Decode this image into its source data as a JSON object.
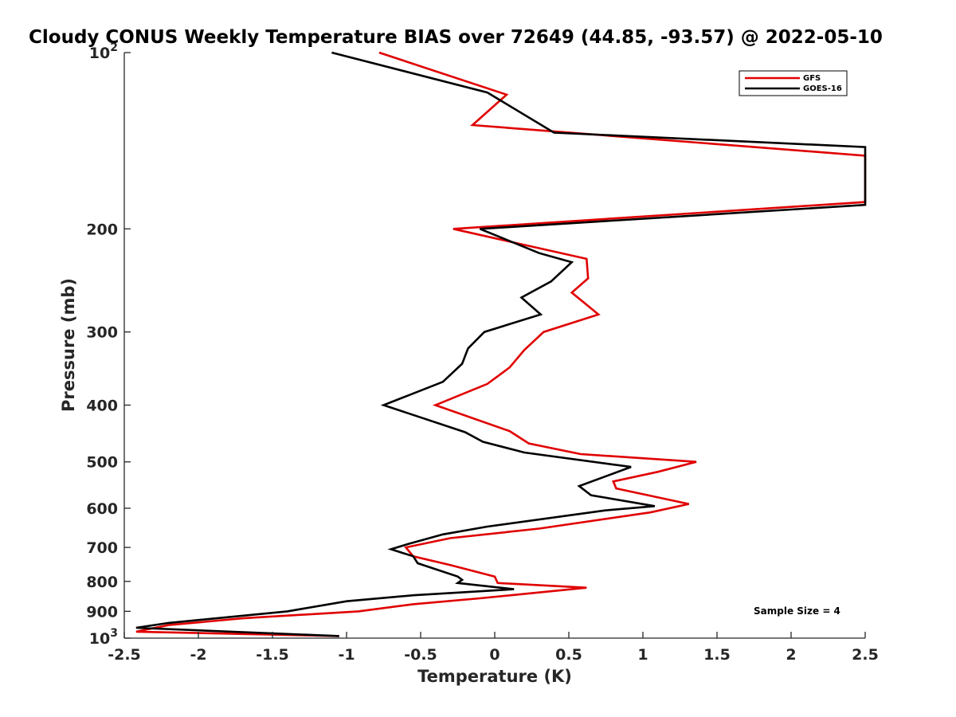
{
  "chart_data": {
    "type": "line",
    "title": "Cloudy CONUS Weekly Temperature BIAS over 72649 (44.85, -93.57) @ 2022-05-10",
    "xlabel": "Temperature (K)",
    "ylabel": "Pressure (mb)",
    "xlim": [
      -2.5,
      2.5
    ],
    "ylim": [
      100,
      1000
    ],
    "y_scale": "log",
    "y_reversed": true,
    "grid": false,
    "legend_position": "top-right",
    "x_ticks": [
      -2.5,
      -2,
      -1.5,
      -1,
      -0.5,
      0,
      0.5,
      1,
      1.5,
      2,
      2.5
    ],
    "x_tick_labels": [
      "-2.5",
      "-2",
      "-1.5",
      "-1",
      "-0.5",
      "0",
      "0.5",
      "1",
      "1.5",
      "2",
      "2.5"
    ],
    "y_ticks": [
      100,
      200,
      300,
      400,
      500,
      600,
      700,
      800,
      900,
      1000
    ],
    "y_tick_labels": [
      {
        "base": "10",
        "exp": "2"
      },
      {
        "base": "200",
        "exp": ""
      },
      {
        "base": "300",
        "exp": ""
      },
      {
        "base": "400",
        "exp": ""
      },
      {
        "base": "500",
        "exp": ""
      },
      {
        "base": "600",
        "exp": ""
      },
      {
        "base": "700",
        "exp": ""
      },
      {
        "base": "800",
        "exp": ""
      },
      {
        "base": "900",
        "exp": ""
      },
      {
        "base": "10",
        "exp": "3"
      }
    ],
    "annotation": "Sample Size = 4",
    "series": [
      {
        "name": "GFS",
        "color": "#e00000",
        "points": [
          [
            -0.78,
            100
          ],
          [
            0.08,
            118
          ],
          [
            -0.15,
            133
          ],
          [
            2.5,
            150
          ],
          [
            2.5,
            180
          ],
          [
            -0.28,
            200
          ],
          [
            0.62,
            225
          ],
          [
            0.63,
            243
          ],
          [
            0.52,
            257
          ],
          [
            0.7,
            280
          ],
          [
            0.33,
            300
          ],
          [
            0.2,
            322
          ],
          [
            0.1,
            345
          ],
          [
            -0.05,
            368
          ],
          [
            -0.4,
            400
          ],
          [
            0.1,
            443
          ],
          [
            0.23,
            465
          ],
          [
            0.58,
            485
          ],
          [
            1.36,
            500
          ],
          [
            1.1,
            520
          ],
          [
            0.8,
            540
          ],
          [
            0.82,
            555
          ],
          [
            1.31,
            590
          ],
          [
            1.05,
            610
          ],
          [
            0.3,
            650
          ],
          [
            -0.3,
            675
          ],
          [
            -0.6,
            700
          ],
          [
            -0.55,
            725
          ],
          [
            -0.3,
            750
          ],
          [
            0.0,
            785
          ],
          [
            0.02,
            805
          ],
          [
            0.62,
            820
          ],
          [
            -0.1,
            855
          ],
          [
            -0.55,
            875
          ],
          [
            -0.92,
            900
          ],
          [
            -1.7,
            925
          ],
          [
            -2.2,
            950
          ],
          [
            -2.42,
            975
          ],
          [
            -1.05,
            992
          ]
        ]
      },
      {
        "name": "GOES-16",
        "color": "#000000",
        "points": [
          [
            -1.1,
            100
          ],
          [
            -0.05,
            117
          ],
          [
            0.4,
            137
          ],
          [
            2.5,
            145
          ],
          [
            2.5,
            182
          ],
          [
            -0.1,
            200
          ],
          [
            0.3,
            220
          ],
          [
            0.52,
            228
          ],
          [
            0.38,
            246
          ],
          [
            0.18,
            262
          ],
          [
            0.31,
            280
          ],
          [
            -0.07,
            300
          ],
          [
            -0.18,
            320
          ],
          [
            -0.22,
            340
          ],
          [
            -0.35,
            365
          ],
          [
            -0.75,
            400
          ],
          [
            -0.2,
            445
          ],
          [
            -0.08,
            462
          ],
          [
            0.2,
            482
          ],
          [
            0.92,
            510
          ],
          [
            0.57,
            550
          ],
          [
            0.65,
            570
          ],
          [
            1.08,
            595
          ],
          [
            0.75,
            605
          ],
          [
            -0.05,
            645
          ],
          [
            -0.35,
            665
          ],
          [
            -0.58,
            690
          ],
          [
            -0.7,
            705
          ],
          [
            -0.55,
            725
          ],
          [
            -0.52,
            745
          ],
          [
            -0.25,
            785
          ],
          [
            -0.22,
            795
          ],
          [
            -0.25,
            805
          ],
          [
            0.13,
            825
          ],
          [
            -0.55,
            845
          ],
          [
            -1.0,
            865
          ],
          [
            -1.4,
            900
          ],
          [
            -2.2,
            942
          ],
          [
            -2.42,
            960
          ],
          [
            -1.05,
            992
          ]
        ]
      }
    ]
  }
}
